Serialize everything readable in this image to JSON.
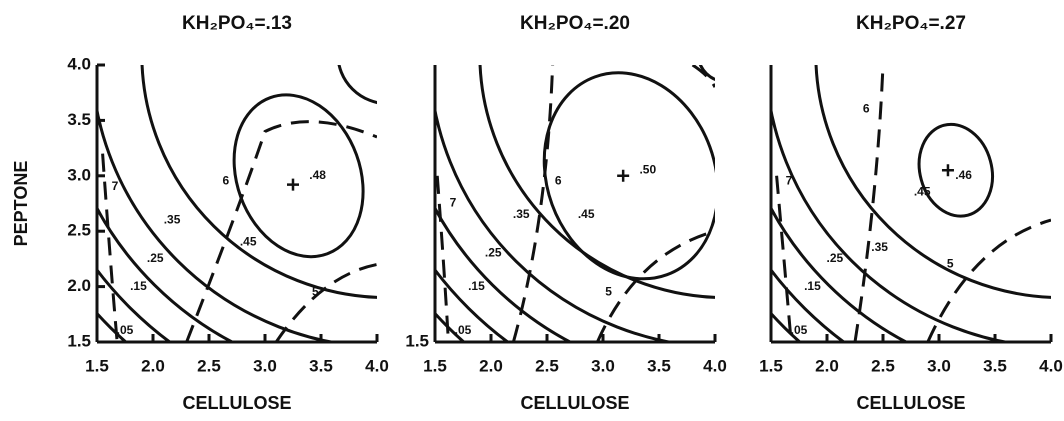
{
  "chart_data": [
    {
      "type": "contour",
      "title": "KH₂PO₄=.13",
      "x_label": "CELLULOSE",
      "y_label": "PEPTONE",
      "xlim": [
        1.5,
        4
      ],
      "ylim": [
        1.5,
        4
      ],
      "xticks": [
        1.5,
        {
          "value": 2,
          "label": "2.0"
        },
        2.5,
        {
          "value": 3,
          "label": "3.0"
        },
        3.5,
        {
          "value": 4,
          "label": "4.0"
        }
      ],
      "yticks": [
        1.5,
        {
          "value": 2,
          "label": "2.0"
        },
        2.5,
        {
          "value": 3,
          "label": "3.0"
        },
        3.5,
        {
          "value": 4,
          "label": "4.0"
        }
      ],
      "annotations": [
        "7",
        ".05",
        ".15",
        ".25",
        ".35",
        "6",
        ".45",
        ".48",
        "5"
      ]
    },
    {
      "type": "contour",
      "title": "KH₂PO₄=.20",
      "x_label": "CELLULOSE",
      "xlim": [
        1.5,
        4
      ],
      "ylim": [
        1.5,
        4
      ],
      "xticks": [
        1.5,
        {
          "value": 2,
          "label": "2.0"
        },
        2.5,
        {
          "value": 3,
          "label": "3.0"
        },
        3.5,
        {
          "value": 4,
          "label": "4.0"
        }
      ],
      "yticks": [
        1.5
      ],
      "annotations": [
        "7",
        ".05",
        ".15",
        ".25",
        ".35",
        "6",
        ".45",
        ".50",
        "5"
      ]
    },
    {
      "type": "contour",
      "title": "KH₂PO₄=.27",
      "x_label": "CELLULOSE",
      "xlim": [
        1.5,
        4
      ],
      "ylim": [
        1.5,
        4
      ],
      "xticks": [
        1.5,
        {
          "value": 2,
          "label": "2.0"
        },
        2.5,
        {
          "value": 3,
          "label": "3.0"
        },
        3.5,
        {
          "value": 4,
          "label": "4.0"
        }
      ],
      "yticks": [],
      "annotations": [
        "7",
        ".05",
        ".15",
        ".25",
        ".35",
        "6",
        ".45",
        ".46",
        "5"
      ]
    }
  ]
}
